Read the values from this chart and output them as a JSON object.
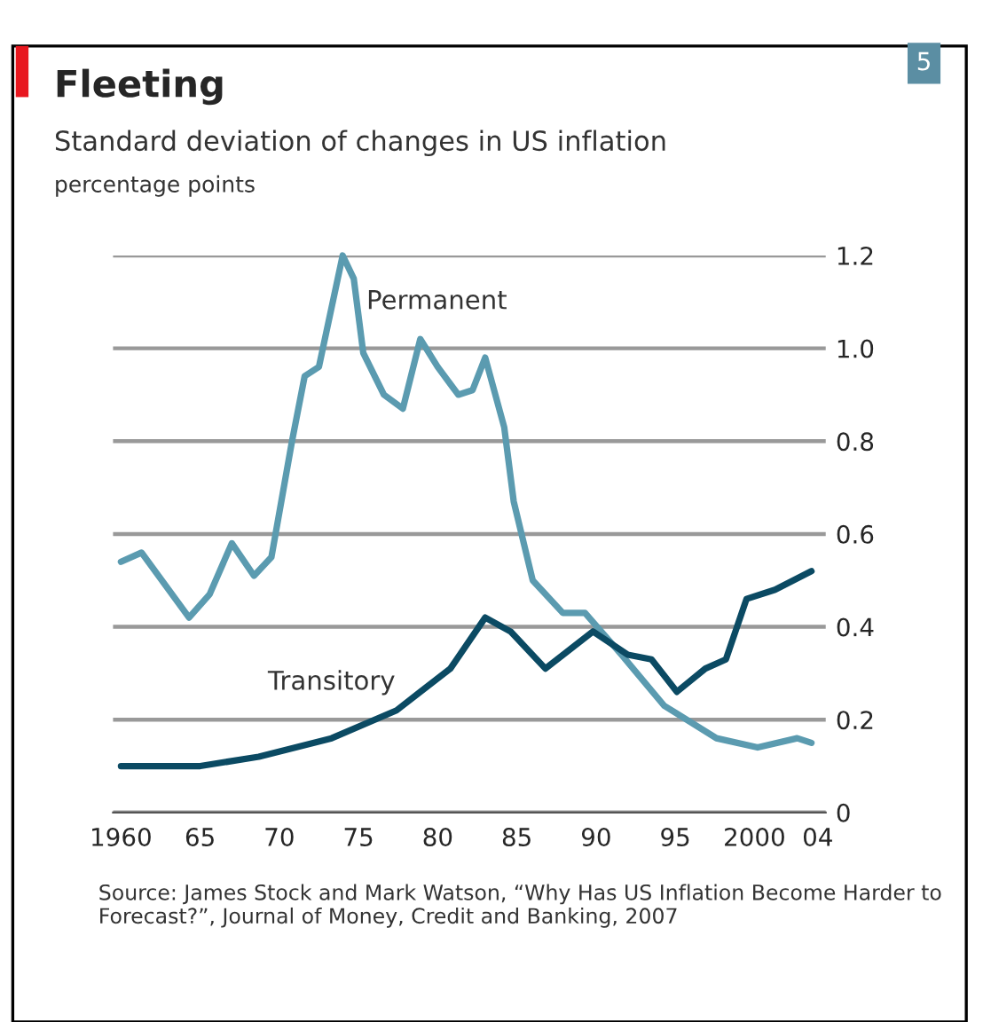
{
  "chart_data": {
    "type": "line",
    "title": "Fleeting",
    "subtitle": "Standard deviation of changes in US inflation",
    "ylabel": "percentage points",
    "annotations": [
      "5",
      "Source: James Stock and Mark Watson, “Why Has US Inflation Become Harder to Forecast?”, Journal of Money, Credit and Banking, 2007"
    ],
    "series": [
      {
        "name": "Permanent",
        "color": "#5b9bb0",
        "x": [
          1960,
          1961.3,
          1964.3,
          1965.6,
          1967,
          1968.4,
          1969.5,
          1970.8,
          1971.6,
          1972.5,
          1974,
          1974.7,
          1975.3,
          1976.6,
          1977.8,
          1978.9,
          1980,
          1981.3,
          1982.2,
          1983,
          1984.2,
          1984.8,
          1986,
          1987.9,
          1989.3,
          1991.6,
          1994.3,
          1997.6,
          2000.2,
          2002.7,
          2003.6
        ],
        "values": [
          0.54,
          0.56,
          0.42,
          0.47,
          0.58,
          0.51,
          0.55,
          0.8,
          0.94,
          0.96,
          1.2,
          1.15,
          0.99,
          0.9,
          0.87,
          1.02,
          0.96,
          0.9,
          0.91,
          0.98,
          0.83,
          0.67,
          0.5,
          0.43,
          0.43,
          0.34,
          0.23,
          0.16,
          0.14,
          0.16,
          0.15
        ]
      },
      {
        "name": "Transitory",
        "color": "#0b4a63",
        "x": [
          1960,
          1965,
          1968.7,
          1973.3,
          1977.4,
          1978.9,
          1980.8,
          1983,
          1984.6,
          1986.8,
          1989.8,
          1992,
          1993.5,
          1995.1,
          1996.9,
          1998.2,
          1999.5,
          2001.3,
          2003.6
        ],
        "values": [
          0.1,
          0.1,
          0.12,
          0.16,
          0.22,
          0.26,
          0.31,
          0.42,
          0.39,
          0.31,
          0.39,
          0.34,
          0.33,
          0.26,
          0.31,
          0.33,
          0.46,
          0.48,
          0.52
        ]
      }
    ],
    "xlim": [
      1959.5,
      2004.5
    ],
    "xticks": [
      {
        "value": 1960,
        "label": "1960"
      },
      {
        "value": 1965,
        "label": "65"
      },
      {
        "value": 1970,
        "label": "70"
      },
      {
        "value": 1975,
        "label": "75"
      },
      {
        "value": 1980,
        "label": "80"
      },
      {
        "value": 1985,
        "label": "85"
      },
      {
        "value": 1990,
        "label": "90"
      },
      {
        "value": 1995,
        "label": "95"
      },
      {
        "value": 2000,
        "label": "2000"
      },
      {
        "value": 2004,
        "label": "04"
      }
    ],
    "ylim": [
      0,
      1.2
    ],
    "yticks": [
      0,
      0.2,
      0.4,
      0.6,
      0.8,
      {
        "value": 1,
        "label": "1.0"
      },
      1.2
    ],
    "grid": "y",
    "legend": false,
    "line_style": "solid",
    "marker": "none"
  }
}
